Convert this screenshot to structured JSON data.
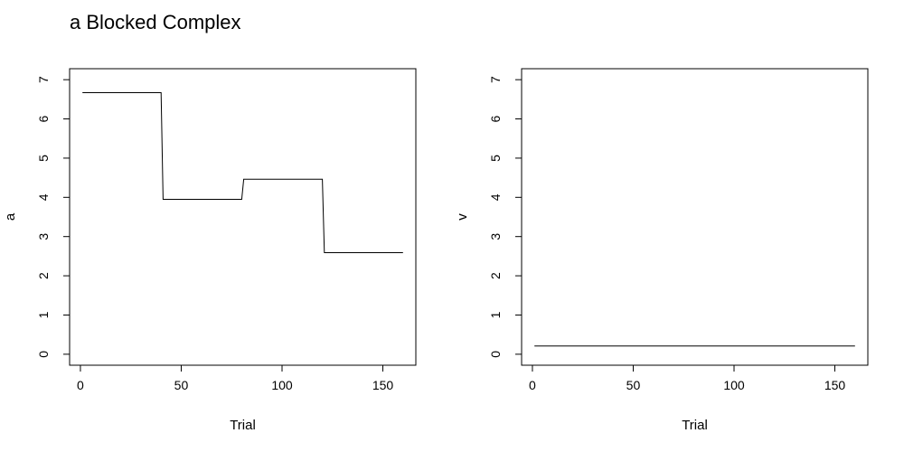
{
  "title": "a Blocked Complex",
  "chart_data": [
    {
      "type": "line",
      "xlabel": "Trial",
      "ylabel": "a",
      "xlim": [
        1,
        160
      ],
      "ylim": [
        0,
        7
      ],
      "xticks": [
        0,
        50,
        100,
        150
      ],
      "yticks": [
        0,
        1,
        2,
        3,
        4,
        5,
        6,
        7
      ],
      "grid": false,
      "series": [
        {
          "x": [
            1,
            40,
            41,
            80,
            81,
            120,
            121,
            160
          ],
          "y": [
            6.67,
            6.67,
            3.95,
            3.95,
            4.46,
            4.46,
            2.59,
            2.59
          ]
        }
      ]
    },
    {
      "type": "line",
      "xlabel": "Trial",
      "ylabel": "v",
      "xlim": [
        1,
        160
      ],
      "ylim": [
        0,
        7
      ],
      "xticks": [
        0,
        50,
        100,
        150
      ],
      "yticks": [
        0,
        1,
        2,
        3,
        4,
        5,
        6,
        7
      ],
      "grid": false,
      "series": [
        {
          "x": [
            1,
            160
          ],
          "y": [
            0.21,
            0.21
          ]
        }
      ]
    }
  ]
}
